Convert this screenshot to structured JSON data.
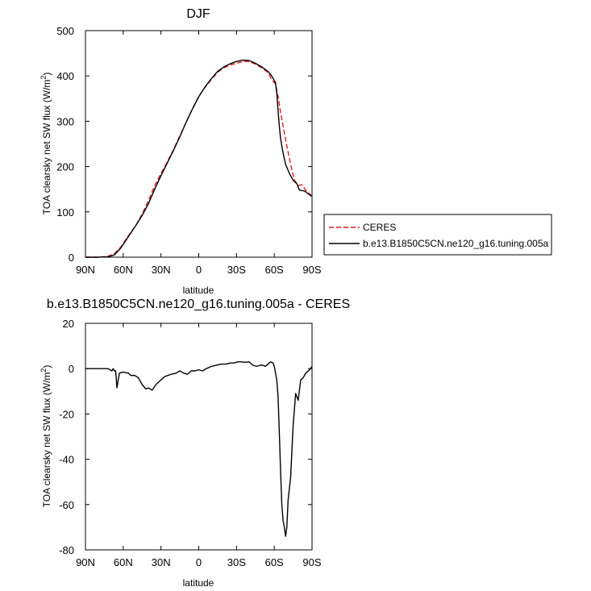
{
  "chart_data": [
    {
      "type": "line",
      "title": "DJF",
      "xlabel": "latitude",
      "ylabel_main": "TOA clearsky net SW flux (W/m",
      "ylabel_sup": "2",
      "ylabel_end": ")",
      "xlim": [
        90,
        -90
      ],
      "ylim": [
        0,
        500
      ],
      "x_ticks": [
        90,
        60,
        30,
        0,
        -30,
        -60,
        -90
      ],
      "x_tick_labels": [
        "90N",
        "60N",
        "30N",
        "0",
        "30S",
        "60S",
        "90S"
      ],
      "y_ticks": [
        0,
        100,
        200,
        300,
        400,
        500
      ],
      "y_tick_labels": [
        "0",
        "100",
        "200",
        "300",
        "400",
        "500"
      ],
      "grid": false,
      "legend_position": "right",
      "series": [
        {
          "name": "CERES",
          "color": "#e41a1c",
          "dash": "dashed",
          "points": [
            [
              90,
              0
            ],
            [
              80,
              0
            ],
            [
              72,
              2
            ],
            [
              67,
              8
            ],
            [
              62,
              22
            ],
            [
              57,
              43
            ],
            [
              50,
              70
            ],
            [
              45,
              95
            ],
            [
              40,
              125
            ],
            [
              35,
              158
            ],
            [
              30,
              185
            ],
            [
              25,
              210
            ],
            [
              20,
              238
            ],
            [
              15,
              268
            ],
            [
              10,
              298
            ],
            [
              5,
              328
            ],
            [
              0,
              355
            ],
            [
              -5,
              375
            ],
            [
              -10,
              392
            ],
            [
              -15,
              408
            ],
            [
              -20,
              418
            ],
            [
              -25,
              424
            ],
            [
              -30,
              428
            ],
            [
              -35,
              432
            ],
            [
              -40,
              432
            ],
            [
              -45,
              426
            ],
            [
              -50,
              418
            ],
            [
              -55,
              408
            ],
            [
              -58,
              392
            ],
            [
              -61,
              382
            ],
            [
              -63,
              355
            ],
            [
              -65,
              320
            ],
            [
              -67,
              290
            ],
            [
              -70,
              245
            ],
            [
              -73,
              205
            ],
            [
              -76,
              170
            ],
            [
              -79,
              158
            ],
            [
              -82,
              160
            ],
            [
              -85,
              148
            ],
            [
              -88,
              140
            ],
            [
              -90,
              135
            ]
          ]
        },
        {
          "name": "b.e13.B1850C5CN.ne120_g16.tuning.005a",
          "color": "#000000",
          "dash": "solid",
          "points": [
            [
              90,
              0
            ],
            [
              80,
              0
            ],
            [
              72,
              1
            ],
            [
              67,
              5
            ],
            [
              62,
              20
            ],
            [
              57,
              41
            ],
            [
              50,
              70
            ],
            [
              45,
              92
            ],
            [
              40,
              118
            ],
            [
              35,
              150
            ],
            [
              30,
              180
            ],
            [
              25,
              208
            ],
            [
              20,
              236
            ],
            [
              15,
              266
            ],
            [
              10,
              298
            ],
            [
              5,
              327
            ],
            [
              0,
              354
            ],
            [
              -5,
              376
            ],
            [
              -10,
              394
            ],
            [
              -15,
              410
            ],
            [
              -20,
              420
            ],
            [
              -25,
              427
            ],
            [
              -30,
              432
            ],
            [
              -35,
              435
            ],
            [
              -40,
              434
            ],
            [
              -45,
              428
            ],
            [
              -50,
              420
            ],
            [
              -55,
              410
            ],
            [
              -58,
              400
            ],
            [
              -61,
              385
            ],
            [
              -62,
              362
            ],
            [
              -63,
              325
            ],
            [
              -64,
              290
            ],
            [
              -65,
              262
            ],
            [
              -67,
              230
            ],
            [
              -69,
              205
            ],
            [
              -72,
              185
            ],
            [
              -75,
              170
            ],
            [
              -78,
              162
            ],
            [
              -80,
              148
            ],
            [
              -84,
              146
            ],
            [
              -87,
              140
            ],
            [
              -90,
              134
            ]
          ]
        }
      ]
    },
    {
      "type": "line",
      "title": "b.e13.B1850C5CN.ne120_g16.tuning.005a - CERES",
      "xlabel": "latitude",
      "ylabel_main": "TOA clearsky net SW flux (W/m",
      "ylabel_sup": "2",
      "ylabel_end": ")",
      "xlim": [
        90,
        -90
      ],
      "ylim": [
        -80,
        20
      ],
      "x_ticks": [
        90,
        60,
        30,
        0,
        -30,
        -60,
        -90
      ],
      "x_tick_labels": [
        "90N",
        "60N",
        "30N",
        "0",
        "30S",
        "60S",
        "90S"
      ],
      "y_ticks": [
        -80,
        -60,
        -40,
        -20,
        0,
        20
      ],
      "y_tick_labels": [
        "-80",
        "-60",
        "-40",
        "-20",
        "0",
        "20"
      ],
      "grid": false,
      "series": [
        {
          "color": "#000000",
          "dash": "solid",
          "points": [
            [
              90,
              0
            ],
            [
              80,
              0
            ],
            [
              72,
              0
            ],
            [
              69,
              -1
            ],
            [
              68,
              0
            ],
            [
              67,
              -1
            ],
            [
              66,
              -1
            ],
            [
              65,
              -8.5
            ],
            [
              64,
              -5
            ],
            [
              63,
              -2
            ],
            [
              60,
              -1.5
            ],
            [
              56,
              -2
            ],
            [
              54,
              -3
            ],
            [
              51,
              -3
            ],
            [
              48,
              -4
            ],
            [
              45,
              -7
            ],
            [
              42,
              -9
            ],
            [
              40,
              -8.5
            ],
            [
              37,
              -9.5
            ],
            [
              34,
              -7
            ],
            [
              30,
              -5
            ],
            [
              27,
              -3.5
            ],
            [
              22,
              -2.5
            ],
            [
              18,
              -2
            ],
            [
              15,
              -1
            ],
            [
              12,
              -2
            ],
            [
              9,
              -2.5
            ],
            [
              6,
              -1
            ],
            [
              3,
              -1
            ],
            [
              0,
              -0.5
            ],
            [
              -3,
              -1
            ],
            [
              -6,
              0
            ],
            [
              -10,
              1
            ],
            [
              -14,
              1.5
            ],
            [
              -18,
              2
            ],
            [
              -22,
              2
            ],
            [
              -25,
              2.5
            ],
            [
              -28,
              2.5
            ],
            [
              -31,
              3
            ],
            [
              -34,
              3
            ],
            [
              -37,
              2.8
            ],
            [
              -40,
              3
            ],
            [
              -43,
              1.5
            ],
            [
              -46,
              1
            ],
            [
              -49,
              1.5
            ],
            [
              -51,
              1.5
            ],
            [
              -53,
              1
            ],
            [
              -55,
              2
            ],
            [
              -57,
              3
            ],
            [
              -59,
              2.5
            ],
            [
              -60,
              1
            ],
            [
              -62,
              -5
            ],
            [
              -63,
              -12
            ],
            [
              -64,
              -28
            ],
            [
              -65,
              -45
            ],
            [
              -66,
              -60
            ],
            [
              -67,
              -67
            ],
            [
              -68,
              -70
            ],
            [
              -69,
              -74
            ],
            [
              -70,
              -70
            ],
            [
              -71,
              -58
            ],
            [
              -73,
              -48
            ],
            [
              -75,
              -25
            ],
            [
              -77,
              -11
            ],
            [
              -79,
              -14
            ],
            [
              -81,
              -5
            ],
            [
              -83,
              -4
            ],
            [
              -85,
              -2
            ],
            [
              -88,
              -0.5
            ],
            [
              -90,
              1
            ]
          ]
        }
      ]
    }
  ]
}
